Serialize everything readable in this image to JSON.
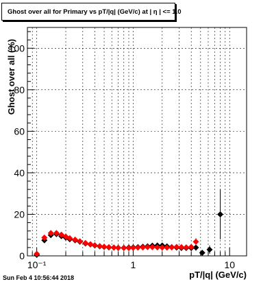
{
  "title": "Ghost over all for Primary vs pT/|q| (GeV/c) at | η | <= 1.0",
  "footer": "Sun Feb  4 10:56:44 2018",
  "colors": {
    "series_red": "#ff0000",
    "series_black": "#000000",
    "grid": "#000000"
  },
  "chart_data": {
    "type": "scatter",
    "title": "Ghost over all for Primary vs pT/|q| (GeV/c) at | η | <= 1.0",
    "xlabel": "pT/|q| (GeV/c)",
    "ylabel": "Ghost over all (%)",
    "xscale": "log",
    "xlim": [
      0.08,
      15
    ],
    "ylim": [
      0,
      110
    ],
    "x_ticks": [
      0.1,
      1,
      10
    ],
    "x_tick_labels": [
      "10⁻¹",
      "1",
      "10"
    ],
    "y_ticks": [
      0,
      20,
      40,
      60,
      80,
      100
    ],
    "grid": true,
    "series": [
      {
        "color": "#000000",
        "marker": "diamond",
        "points": [
          {
            "x": 0.1,
            "y": 0.5,
            "yerr": 0.8
          },
          {
            "x": 0.12,
            "y": 7.5,
            "yerr": 1
          },
          {
            "x": 0.14,
            "y": 10,
            "yerr": 1
          },
          {
            "x": 0.16,
            "y": 10.5,
            "yerr": 0.6
          },
          {
            "x": 0.18,
            "y": 9.5,
            "yerr": 0.5
          },
          {
            "x": 0.2,
            "y": 8.8,
            "yerr": 0.5
          },
          {
            "x": 0.22,
            "y": 8,
            "yerr": 0.4
          },
          {
            "x": 0.25,
            "y": 7.5,
            "yerr": 0.4
          },
          {
            "x": 0.28,
            "y": 6.8,
            "yerr": 0.4
          },
          {
            "x": 0.32,
            "y": 6,
            "yerr": 0.4
          },
          {
            "x": 0.36,
            "y": 5.5,
            "yerr": 0.4
          },
          {
            "x": 0.4,
            "y": 5,
            "yerr": 0.4
          },
          {
            "x": 0.45,
            "y": 4.6,
            "yerr": 0.4
          },
          {
            "x": 0.5,
            "y": 4.3,
            "yerr": 0.4
          },
          {
            "x": 0.56,
            "y": 4.1,
            "yerr": 0.4
          },
          {
            "x": 0.63,
            "y": 4,
            "yerr": 0.4
          },
          {
            "x": 0.7,
            "y": 3.9,
            "yerr": 0.4
          },
          {
            "x": 0.8,
            "y": 3.9,
            "yerr": 0.4
          },
          {
            "x": 0.9,
            "y": 4,
            "yerr": 0.4
          },
          {
            "x": 1.0,
            "y": 4.1,
            "yerr": 0.4
          },
          {
            "x": 1.12,
            "y": 4.2,
            "yerr": 0.5
          },
          {
            "x": 1.26,
            "y": 4.4,
            "yerr": 0.5
          },
          {
            "x": 1.41,
            "y": 4.6,
            "yerr": 0.5
          },
          {
            "x": 1.58,
            "y": 4.9,
            "yerr": 0.5
          },
          {
            "x": 1.78,
            "y": 5,
            "yerr": 0.6
          },
          {
            "x": 2.0,
            "y": 5,
            "yerr": 0.6
          },
          {
            "x": 2.24,
            "y": 4.6,
            "yerr": 0.7
          },
          {
            "x": 2.51,
            "y": 4.2,
            "yerr": 0.7
          },
          {
            "x": 2.82,
            "y": 4,
            "yerr": 0.8
          },
          {
            "x": 3.16,
            "y": 3.8,
            "yerr": 0.9
          },
          {
            "x": 3.55,
            "y": 3.8,
            "yerr": 1
          },
          {
            "x": 4.0,
            "y": 3.8,
            "yerr": 1.2
          },
          {
            "x": 4.47,
            "y": 4,
            "yerr": 1.5
          },
          {
            "x": 5.2,
            "y": 1.5,
            "yerr": 1.2
          },
          {
            "x": 6.2,
            "y": 3,
            "yerr": 2
          },
          {
            "x": 8.0,
            "y": 20,
            "yerr": 12
          }
        ]
      },
      {
        "color": "#ff0000",
        "marker": "diamond",
        "points": [
          {
            "x": 0.1,
            "y": 1,
            "yerr": 0.8
          },
          {
            "x": 0.12,
            "y": 8.8,
            "yerr": 1
          },
          {
            "x": 0.14,
            "y": 11,
            "yerr": 1
          },
          {
            "x": 0.16,
            "y": 11,
            "yerr": 0.6
          },
          {
            "x": 0.18,
            "y": 10.2,
            "yerr": 0.5
          },
          {
            "x": 0.2,
            "y": 9.3,
            "yerr": 0.5
          },
          {
            "x": 0.22,
            "y": 8.5,
            "yerr": 0.4
          },
          {
            "x": 0.25,
            "y": 7.8,
            "yerr": 0.4
          },
          {
            "x": 0.28,
            "y": 7,
            "yerr": 0.4
          },
          {
            "x": 0.32,
            "y": 6.2,
            "yerr": 0.4
          },
          {
            "x": 0.36,
            "y": 5.6,
            "yerr": 0.4
          },
          {
            "x": 0.4,
            "y": 5.1,
            "yerr": 0.4
          },
          {
            "x": 0.45,
            "y": 4.7,
            "yerr": 0.4
          },
          {
            "x": 0.5,
            "y": 4.4,
            "yerr": 0.4
          },
          {
            "x": 0.56,
            "y": 4.2,
            "yerr": 0.4
          },
          {
            "x": 0.63,
            "y": 4,
            "yerr": 0.4
          },
          {
            "x": 0.7,
            "y": 3.9,
            "yerr": 0.4
          },
          {
            "x": 0.8,
            "y": 3.8,
            "yerr": 0.4
          },
          {
            "x": 0.9,
            "y": 3.8,
            "yerr": 0.4
          },
          {
            "x": 1.0,
            "y": 3.9,
            "yerr": 0.4
          },
          {
            "x": 1.12,
            "y": 4,
            "yerr": 0.5
          },
          {
            "x": 1.26,
            "y": 4.1,
            "yerr": 0.5
          },
          {
            "x": 1.41,
            "y": 4.2,
            "yerr": 0.5
          },
          {
            "x": 1.58,
            "y": 4.2,
            "yerr": 0.5
          },
          {
            "x": 1.78,
            "y": 4.1,
            "yerr": 0.6
          },
          {
            "x": 2.0,
            "y": 4,
            "yerr": 0.6
          },
          {
            "x": 2.24,
            "y": 4,
            "yerr": 0.7
          },
          {
            "x": 2.51,
            "y": 4.1,
            "yerr": 0.7
          },
          {
            "x": 2.82,
            "y": 4.3,
            "yerr": 0.8
          },
          {
            "x": 3.16,
            "y": 4.2,
            "yerr": 0.9
          },
          {
            "x": 3.55,
            "y": 4.1,
            "yerr": 1
          },
          {
            "x": 4.0,
            "y": 4.3,
            "yerr": 1.2
          },
          {
            "x": 4.47,
            "y": 6.8,
            "yerr": 1.8
          }
        ]
      }
    ]
  }
}
